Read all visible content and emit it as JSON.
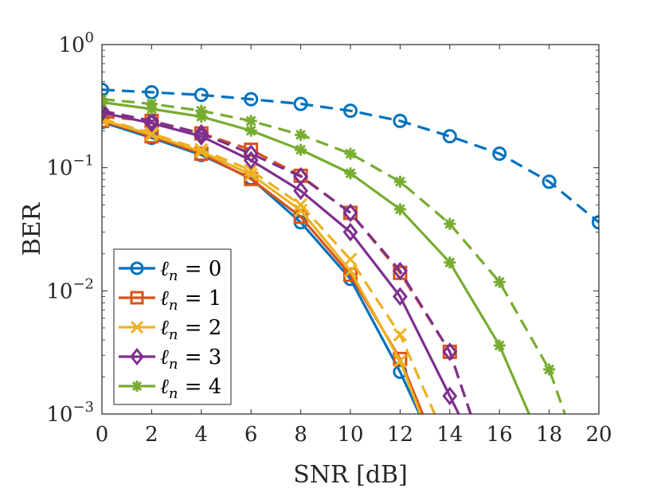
{
  "chart_data": {
    "type": "line",
    "xlabel": "SNR [dB]",
    "ylabel": "BER",
    "xlim": [
      0,
      20
    ],
    "ylim": [
      0.001,
      1
    ],
    "yscale": "log",
    "grid": false,
    "legend_position": "bottom-left",
    "x_ticks": [
      "0",
      "2",
      "4",
      "6",
      "8",
      "10",
      "12",
      "14",
      "16",
      "18",
      "20"
    ],
    "y_ticks": [
      {
        "base": "10",
        "exp": "0"
      },
      {
        "base": "10",
        "exp": "−1"
      },
      {
        "base": "10",
        "exp": "−2"
      },
      {
        "base": "10",
        "exp": "−3"
      }
    ],
    "series": [
      {
        "legend_var": "ℓ",
        "legend_sub": "n",
        "legend_rhs": " = 0",
        "color": "#0072BD",
        "marker": "circle",
        "solid": {
          "x": [
            0,
            2,
            4,
            6,
            8,
            10,
            12,
            13
          ],
          "y": [
            0.235,
            0.175,
            0.127,
            0.082,
            0.036,
            0.0125,
            0.0022,
            0.0008
          ]
        },
        "dashed": {
          "x": [
            0,
            2,
            4,
            6,
            8,
            10,
            12,
            14,
            16,
            18,
            20
          ],
          "y": [
            0.43,
            0.41,
            0.39,
            0.36,
            0.33,
            0.29,
            0.24,
            0.18,
            0.13,
            0.077,
            0.036
          ]
        }
      },
      {
        "legend_var": "ℓ",
        "legend_sub": "n",
        "legend_rhs": " = 1",
        "color": "#D95319",
        "marker": "square",
        "solid": {
          "x": [
            0,
            2,
            4,
            6,
            8,
            10,
            12,
            13
          ],
          "y": [
            0.24,
            0.18,
            0.13,
            0.081,
            0.04,
            0.0135,
            0.0028,
            0.0009
          ]
        },
        "dashed": {
          "x": [
            0,
            2,
            4,
            6,
            8,
            10,
            12,
            14,
            15
          ],
          "y": [
            0.26,
            0.24,
            0.19,
            0.14,
            0.086,
            0.043,
            0.014,
            0.0032,
            0.0008
          ]
        }
      },
      {
        "legend_var": "ℓ",
        "legend_sub": "n",
        "legend_rhs": " = 2",
        "color": "#EDB120",
        "marker": "x",
        "solid": {
          "x": [
            0,
            2,
            4,
            6,
            8,
            10,
            12,
            13
          ],
          "y": [
            0.245,
            0.185,
            0.135,
            0.088,
            0.045,
            0.0145,
            0.0027,
            0.0008
          ]
        },
        "dashed": {
          "x": [
            0,
            2,
            4,
            6,
            8,
            10,
            12,
            13.6
          ],
          "y": [
            0.25,
            0.19,
            0.14,
            0.095,
            0.05,
            0.018,
            0.0044,
            0.0008
          ]
        }
      },
      {
        "legend_var": "ℓ",
        "legend_sub": "n",
        "legend_rhs": " = 3",
        "color": "#7E2F8E",
        "marker": "diamond",
        "solid": {
          "x": [
            0,
            2,
            4,
            6,
            8,
            10,
            12,
            14,
            14.6
          ],
          "y": [
            0.28,
            0.23,
            0.18,
            0.115,
            0.065,
            0.03,
            0.009,
            0.0014,
            0.0008
          ]
        },
        "dashed": {
          "x": [
            0,
            2,
            4,
            6,
            8,
            10,
            12,
            14,
            15
          ],
          "y": [
            0.29,
            0.24,
            0.19,
            0.13,
            0.085,
            0.043,
            0.0145,
            0.0032,
            0.0008
          ]
        }
      },
      {
        "legend_var": "ℓ",
        "legend_sub": "n",
        "legend_rhs": " = 4",
        "color": "#77AC30",
        "marker": "asterisk",
        "solid": {
          "x": [
            0,
            2,
            4,
            6,
            8,
            10,
            12,
            14,
            16,
            17.4
          ],
          "y": [
            0.34,
            0.3,
            0.26,
            0.2,
            0.14,
            0.09,
            0.046,
            0.017,
            0.0036,
            0.0008
          ]
        },
        "dashed": {
          "x": [
            0,
            2,
            4,
            6,
            8,
            10,
            12,
            14,
            16,
            18,
            18.8
          ],
          "y": [
            0.36,
            0.33,
            0.29,
            0.24,
            0.185,
            0.13,
            0.077,
            0.035,
            0.0118,
            0.0023,
            0.0008
          ]
        }
      }
    ]
  }
}
